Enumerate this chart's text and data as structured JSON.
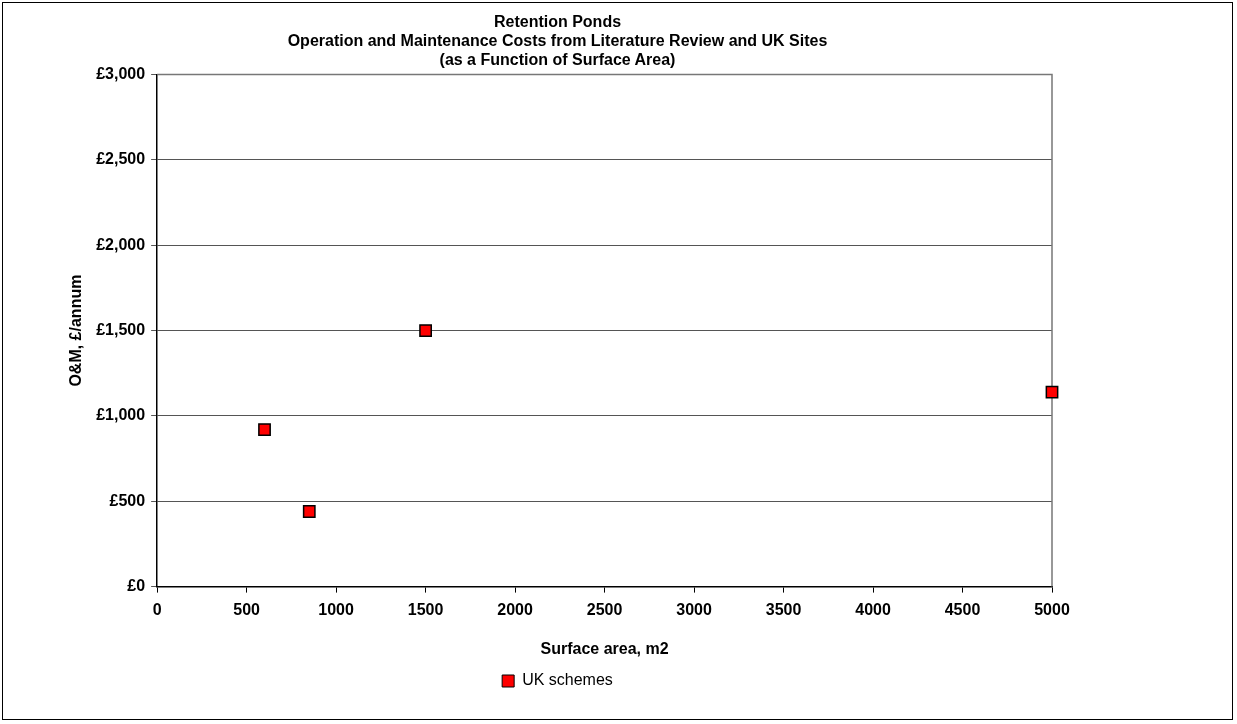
{
  "chart_data": {
    "type": "scatter",
    "title": "Retention Ponds\nOperation and Maintenance Costs from Literature Review and UK Sites\n(as a Function of Surface Area)",
    "xlabel": "Surface area, m2",
    "ylabel": "O&M, £/annum",
    "series": [
      {
        "name": "UK schemes",
        "color": "#ff0000",
        "x": [
          600,
          850,
          1500,
          5000
        ],
        "values": [
          920,
          440,
          1500,
          1140
        ]
      }
    ],
    "xlim": [
      0,
      5000
    ],
    "xticks": [
      0,
      500,
      1000,
      1500,
      2000,
      2500,
      3000,
      3500,
      4000,
      4500,
      5000
    ],
    "ylim": [
      0,
      3000
    ],
    "yticks": [
      {
        "value": 0,
        "label": "£0"
      },
      {
        "value": 500,
        "label": "£500"
      },
      {
        "value": 1000,
        "label": "£1,000"
      },
      {
        "value": 1500,
        "label": "£1,500"
      },
      {
        "value": 2000,
        "label": "£2,000"
      },
      {
        "value": 2500,
        "label": "£2,500"
      },
      {
        "value": 3000,
        "label": "£3,000"
      }
    ],
    "grid": "y",
    "legend": "bottom",
    "marker": "square"
  }
}
